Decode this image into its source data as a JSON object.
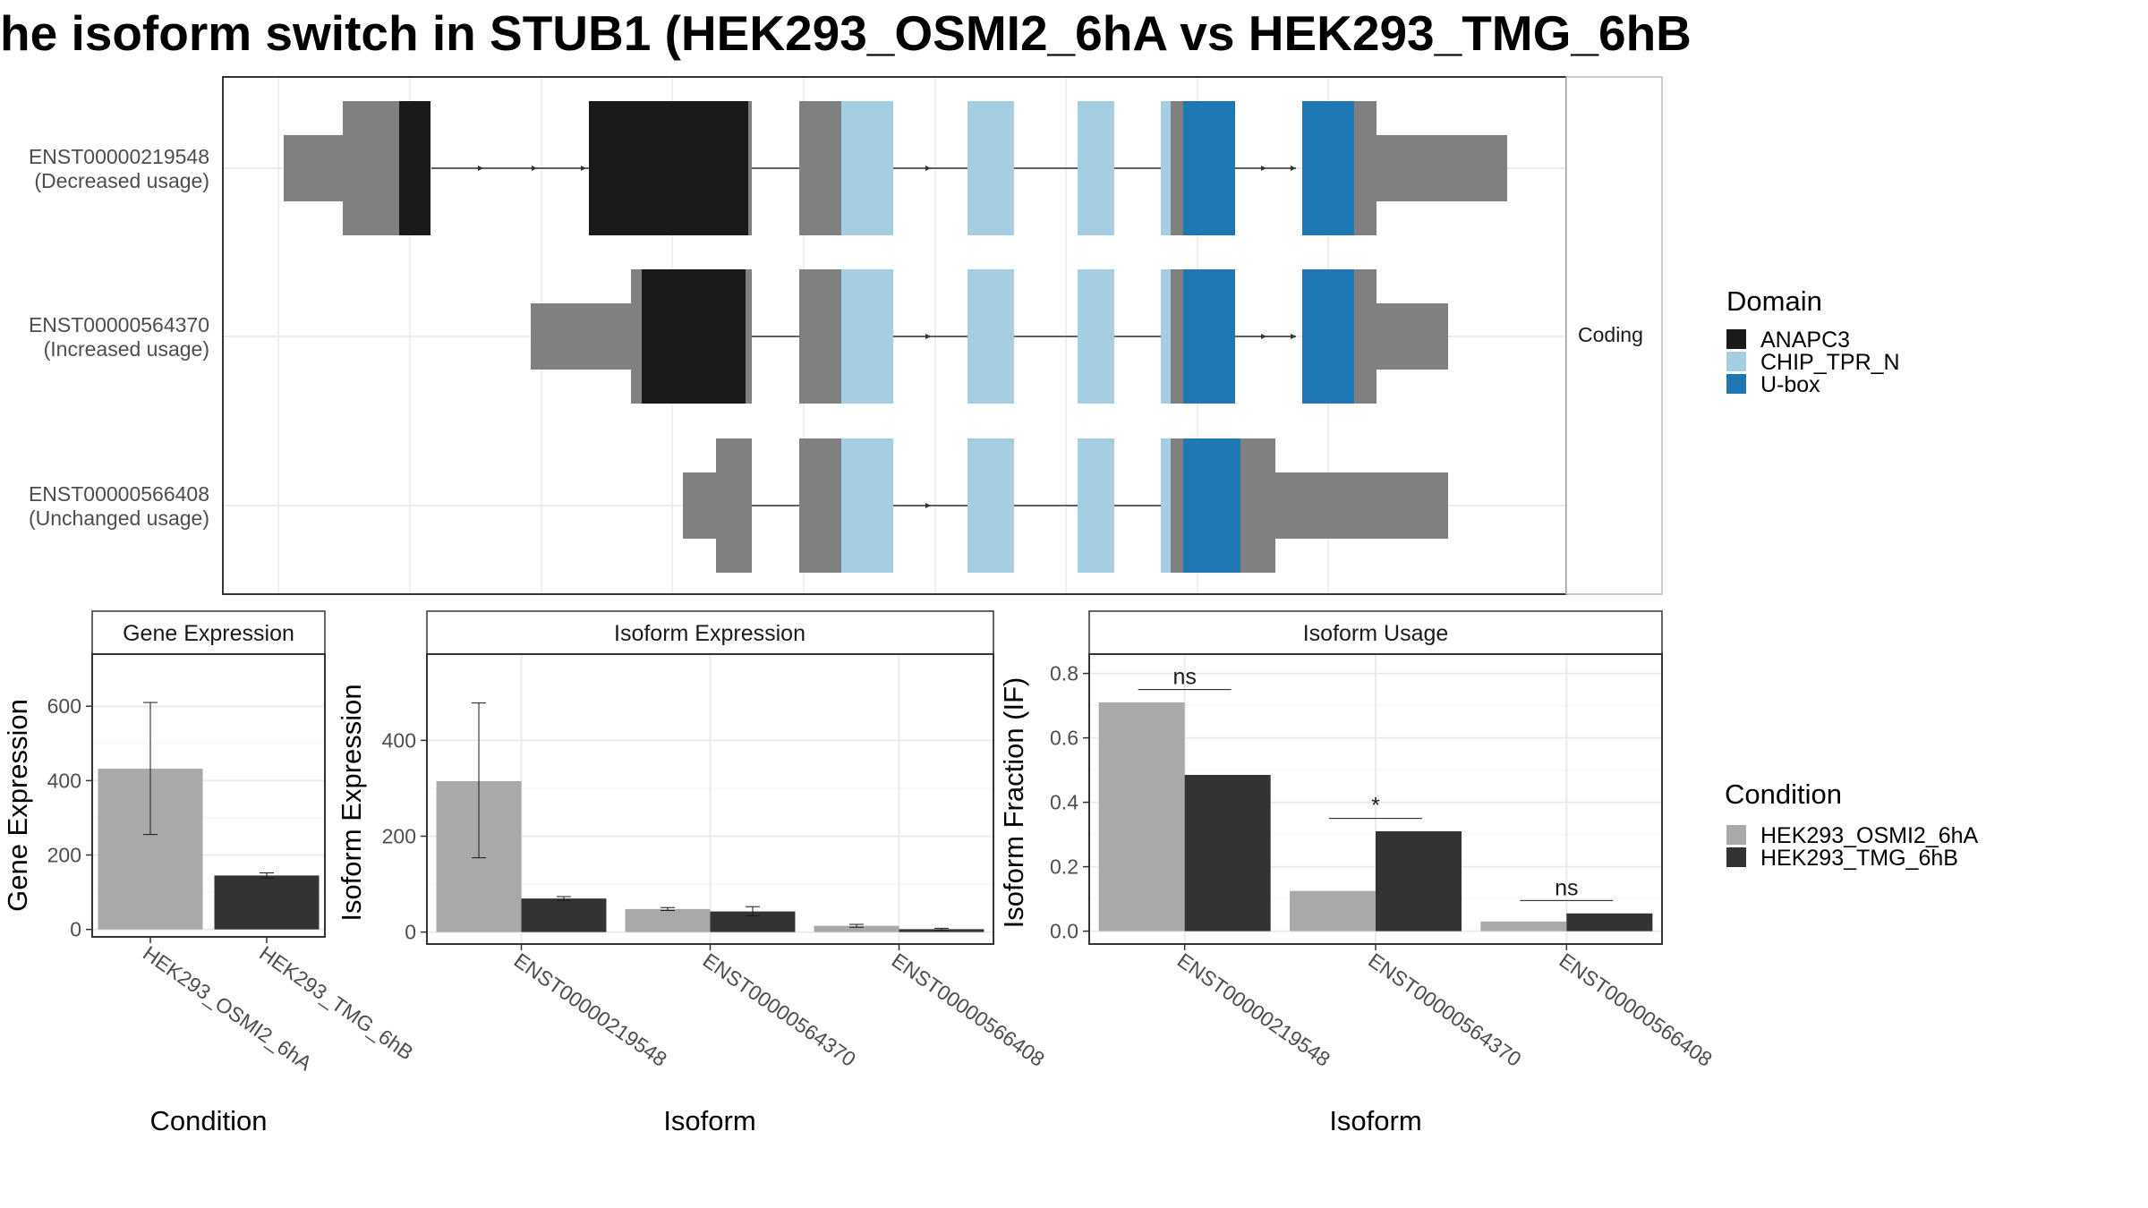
{
  "title": "he isoform switch in STUB1 (HEK293_OSMI2_6hA vs HEK293_TMG_6hB",
  "colors": {
    "utr": "#808080",
    "intron": "#333333",
    "ANAPC3": "#1a1a1a",
    "CHIP_TPR_N": "#a6cee3",
    "U-box": "#1f78b4",
    "cond_A": "#a9a9a9",
    "cond_B": "#333333"
  },
  "chart_data": [
    {
      "type": "gene-structure",
      "facet_label": "Coding",
      "transcripts": [
        {
          "id": "ENST00000219548",
          "usage": "(Decreased usage)"
        },
        {
          "id": "ENST00000564370",
          "usage": "(Increased usage)"
        },
        {
          "id": "ENST00000566408",
          "usage": "(Unchanged usage)"
        }
      ]
    },
    {
      "type": "bar",
      "panel": "Gene Expression",
      "xlabel": "Condition",
      "ylabel": "Gene Expression",
      "categories": [
        "HEK293_OSMI2_6hA",
        "HEK293_TMG_6hB"
      ],
      "values": [
        432,
        145
      ],
      "errors": [
        [
          255,
          610
        ],
        [
          138,
          152
        ]
      ],
      "yticks": [
        0,
        200,
        400,
        600
      ],
      "ylim": [
        -20,
        740
      ]
    },
    {
      "type": "bar",
      "panel": "Isoform Expression",
      "xlabel": "Isoform",
      "ylabel": "Isoform Expression",
      "categories": [
        "ENST00000219548",
        "ENST00000564370",
        "ENST00000566408"
      ],
      "series": [
        {
          "name": "HEK293_OSMI2_6hA",
          "values": [
            315,
            48,
            13
          ],
          "errors": [
            [
              155,
              478
            ],
            [
              45,
              51
            ],
            [
              10,
              16
            ]
          ]
        },
        {
          "name": "HEK293_TMG_6hB",
          "values": [
            70,
            43,
            6
          ],
          "errors": [
            [
              66,
              74
            ],
            [
              34,
              53
            ],
            [
              4,
              8
            ]
          ]
        }
      ],
      "yticks": [
        0,
        200,
        400
      ],
      "ylim": [
        -25,
        580
      ]
    },
    {
      "type": "bar",
      "panel": "Isoform Usage",
      "xlabel": "Isoform",
      "ylabel": "Isoform Fraction (IF)",
      "categories": [
        "ENST00000219548",
        "ENST00000564370",
        "ENST00000566408"
      ],
      "series": [
        {
          "name": "HEK293_OSMI2_6hA",
          "values": [
            0.71,
            0.125,
            0.03
          ]
        },
        {
          "name": "HEK293_TMG_6hB",
          "values": [
            0.485,
            0.31,
            0.055
          ]
        }
      ],
      "significance": [
        "ns",
        "*",
        "ns"
      ],
      "yticks": [
        0.0,
        0.2,
        0.4,
        0.6,
        0.8
      ],
      "ylim": [
        -0.04,
        0.86
      ]
    }
  ],
  "legends": {
    "domain": {
      "title": "Domain",
      "items": [
        "ANAPC3",
        "CHIP_TPR_N",
        "U-box"
      ]
    },
    "condition": {
      "title": "Condition",
      "items": [
        "HEK293_OSMI2_6hA",
        "HEK293_TMG_6hB"
      ]
    }
  }
}
